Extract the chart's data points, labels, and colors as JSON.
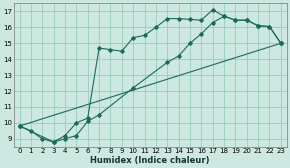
{
  "xlabel": "Humidex (Indice chaleur)",
  "bg_color": "#cce8e0",
  "grid_color": "#99ccbb",
  "line_color": "#1a6b5a",
  "xlim": [
    -0.5,
    23.5
  ],
  "ylim": [
    8.5,
    17.5
  ],
  "xticks": [
    0,
    1,
    2,
    3,
    4,
    5,
    6,
    7,
    8,
    9,
    10,
    11,
    12,
    13,
    14,
    15,
    16,
    17,
    18,
    19,
    20,
    21,
    22,
    23
  ],
  "yticks": [
    9,
    10,
    11,
    12,
    13,
    14,
    15,
    16,
    17
  ],
  "curve1_x": [
    0,
    1,
    2,
    3,
    4,
    5,
    6,
    7,
    8,
    9,
    10,
    11,
    12,
    13,
    14,
    15,
    16,
    17,
    18,
    19,
    20,
    21,
    22,
    23
  ],
  "curve1_y": [
    9.8,
    9.5,
    9.0,
    8.8,
    9.2,
    10.0,
    10.3,
    14.7,
    14.6,
    14.5,
    15.35,
    15.5,
    16.0,
    16.55,
    16.55,
    16.5,
    16.45,
    17.1,
    16.7,
    16.45,
    16.45,
    16.1,
    16.05,
    15.0
  ],
  "curve2_x": [
    0,
    3,
    4,
    5,
    6,
    7,
    10,
    13,
    14,
    15,
    16,
    17,
    18,
    19,
    20,
    21,
    22,
    23
  ],
  "curve2_y": [
    9.8,
    8.8,
    9.0,
    9.2,
    10.1,
    10.5,
    12.2,
    13.8,
    14.2,
    15.0,
    15.6,
    16.3,
    16.7,
    16.45,
    16.45,
    16.1,
    16.05,
    15.0
  ],
  "curve3_x": [
    0,
    23
  ],
  "curve3_y": [
    9.8,
    15.0
  ]
}
